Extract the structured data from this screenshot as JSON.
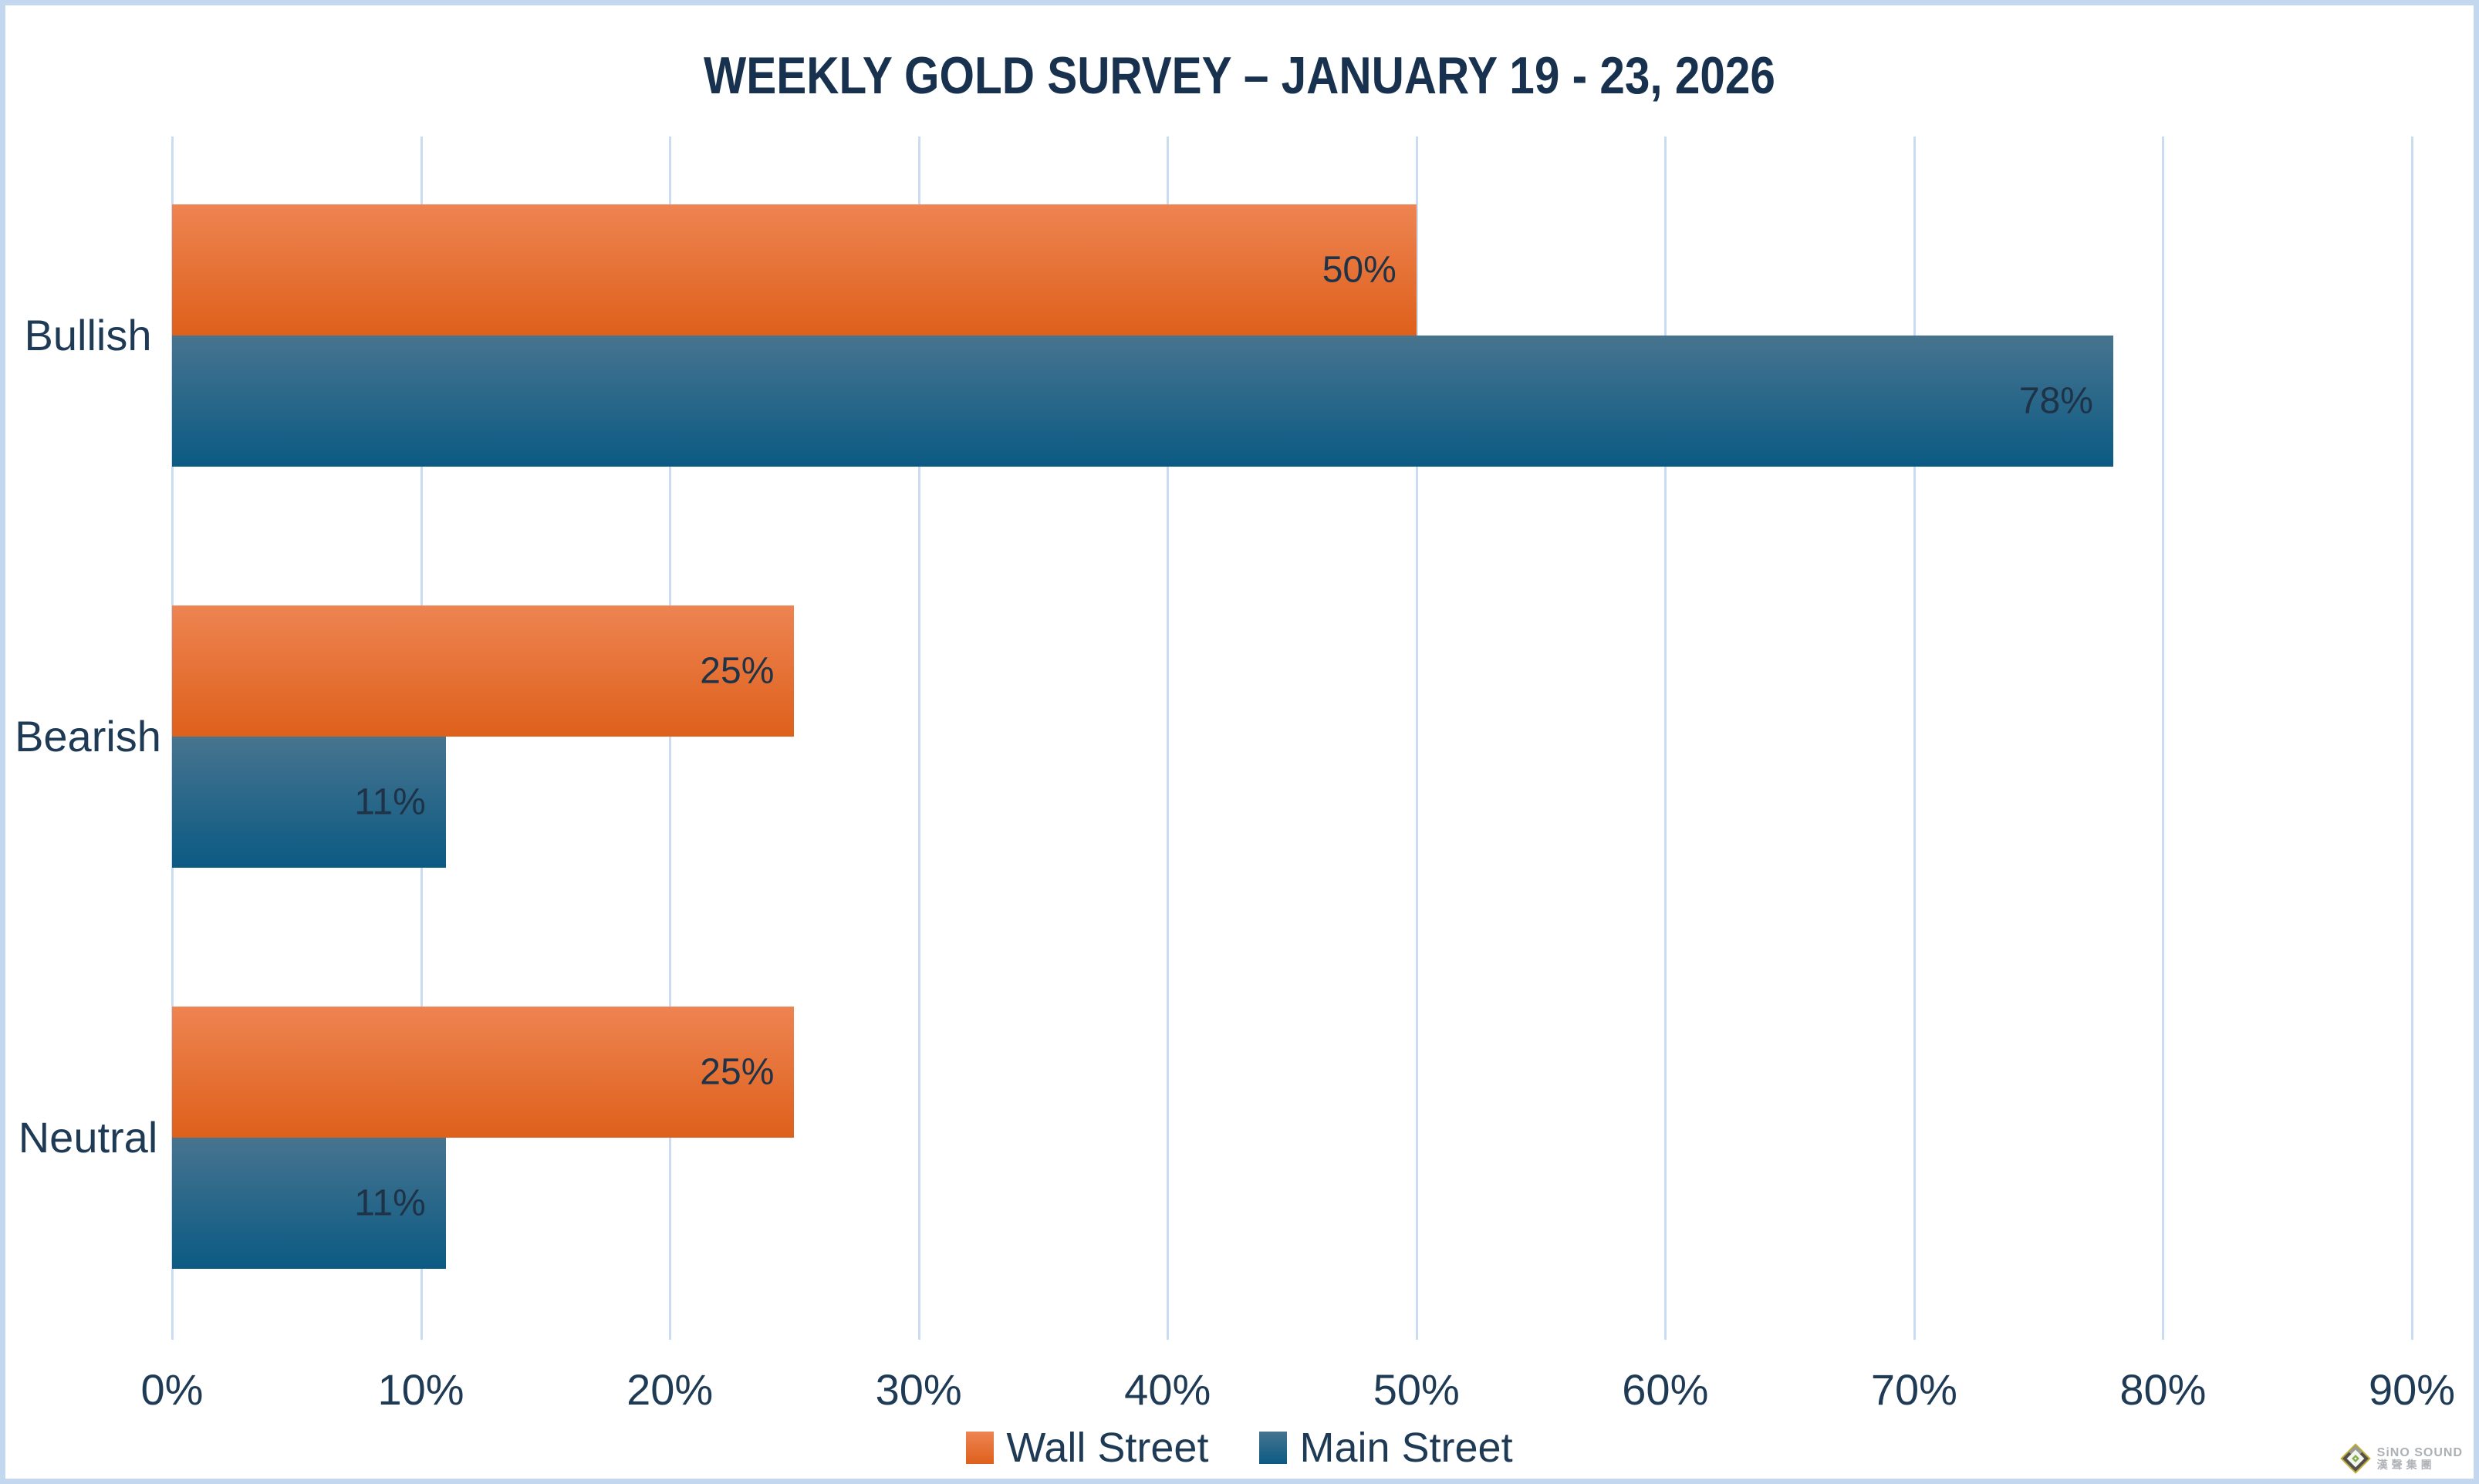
{
  "chart_data": {
    "type": "bar",
    "orientation": "horizontal",
    "title": "WEEKLY GOLD SURVEY – JANUARY 19 - 23, 2026",
    "categories": [
      "Bullish",
      "Bearish",
      "Neutral"
    ],
    "series": [
      {
        "name": "Wall Street",
        "values": [
          50,
          25,
          25
        ],
        "data_labels": [
          "50%",
          "25%",
          "25%"
        ],
        "color_top": "#EE8452",
        "color_bottom": "#DE601B"
      },
      {
        "name": "Main Street",
        "values": [
          78,
          11,
          11
        ],
        "data_labels": [
          "78%",
          "11%",
          "11%"
        ],
        "color_top": "#47748F",
        "color_bottom": "#0B5A83"
      }
    ],
    "xlim": [
      0,
      90
    ],
    "x_ticks": [
      "0%",
      "10%",
      "20%",
      "30%",
      "40%",
      "50%",
      "60%",
      "70%",
      "80%",
      "90%"
    ],
    "grid": "vertical-gridlines-only",
    "legend_position": "bottom",
    "colors": {
      "gridline": "#C9DCF1",
      "frame_border": "#C3D8EF",
      "text": "#1E3A55",
      "title_text": "#17314E"
    }
  },
  "watermark": {
    "name_en": "SiNO SOUND",
    "name_zh": "漢聲集團"
  }
}
